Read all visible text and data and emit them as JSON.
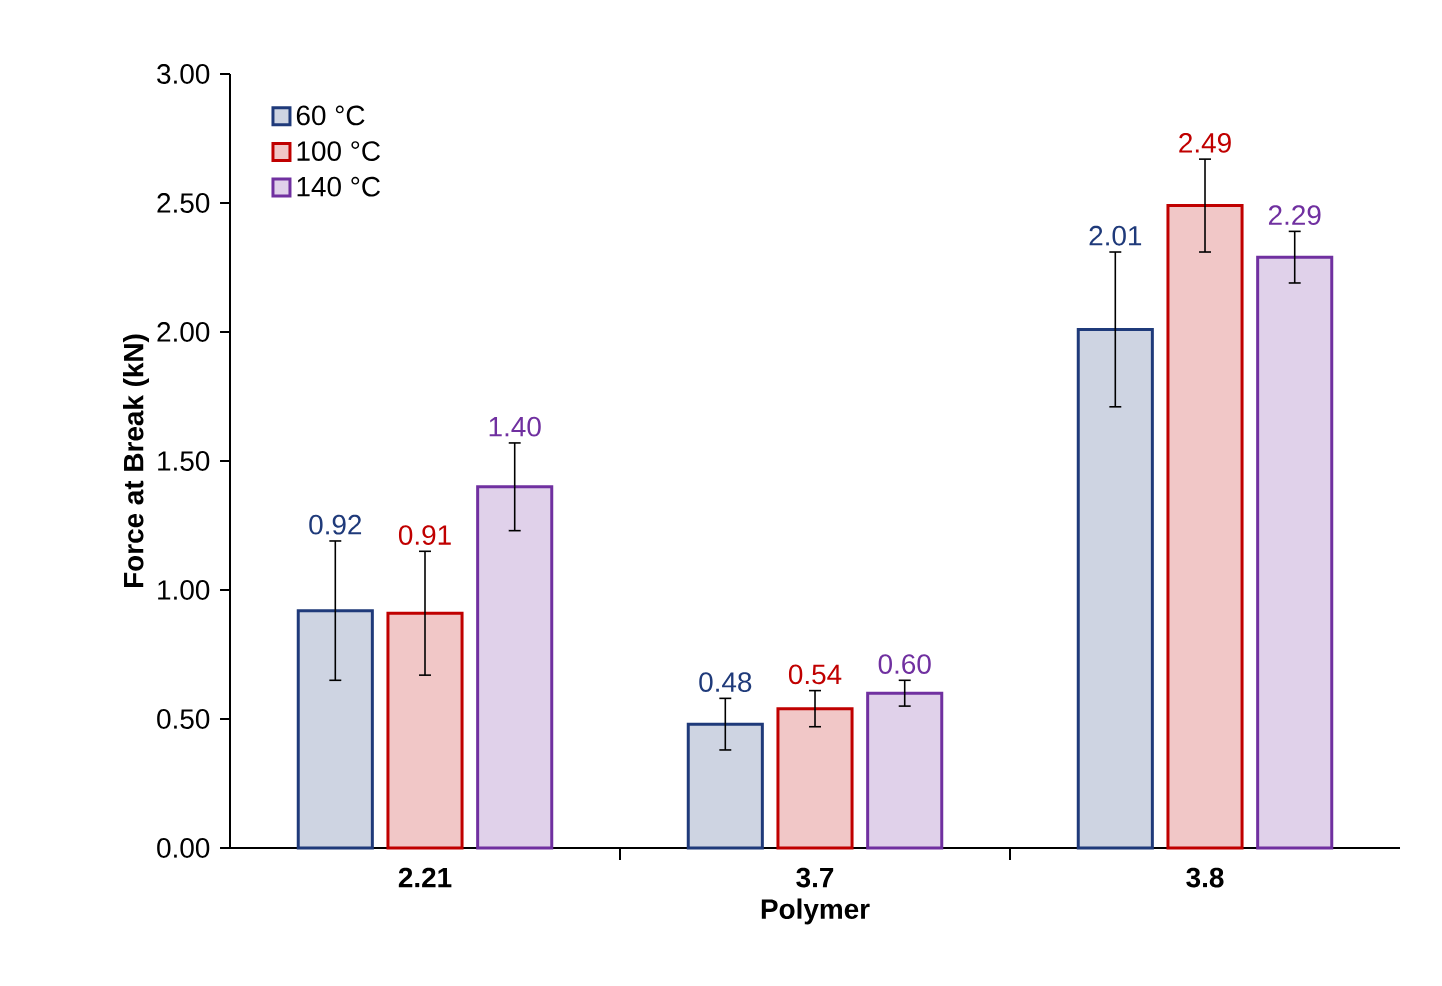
{
  "chart_data": {
    "type": "bar",
    "xlabel": "Polymer",
    "ylabel": "Force at Break (kN)",
    "categories": [
      "2.21",
      "3.7",
      "3.8"
    ],
    "series": [
      {
        "name": "60 °C",
        "color": "#1f3a7a",
        "values": [
          0.92,
          0.48,
          2.01
        ],
        "errors": [
          0.27,
          0.1,
          0.3
        ],
        "value_labels": [
          "0.92",
          "0.48",
          "2.01"
        ]
      },
      {
        "name": "100 °C",
        "color": "#c00000",
        "values": [
          0.91,
          0.54,
          2.49
        ],
        "errors": [
          0.24,
          0.07,
          0.18
        ],
        "value_labels": [
          "0.91",
          "0.54",
          "2.49"
        ]
      },
      {
        "name": "140 °C",
        "color": "#7030a0",
        "values": [
          1.4,
          0.6,
          2.29
        ],
        "errors": [
          0.17,
          0.05,
          0.1
        ],
        "value_labels": [
          "1.40",
          "0.60",
          "2.29"
        ]
      }
    ],
    "ylim": [
      0,
      3
    ],
    "yticks": [
      {
        "value": 0,
        "label": "0.00"
      },
      {
        "value": 0.5,
        "label": "0.50"
      },
      {
        "value": 1,
        "label": "1.00"
      },
      {
        "value": 1.5,
        "label": "1.50"
      },
      {
        "value": 2,
        "label": "2.00"
      },
      {
        "value": 2.5,
        "label": "2.50"
      },
      {
        "value": 3,
        "label": "3.00"
      }
    ],
    "legend": "top left"
  }
}
